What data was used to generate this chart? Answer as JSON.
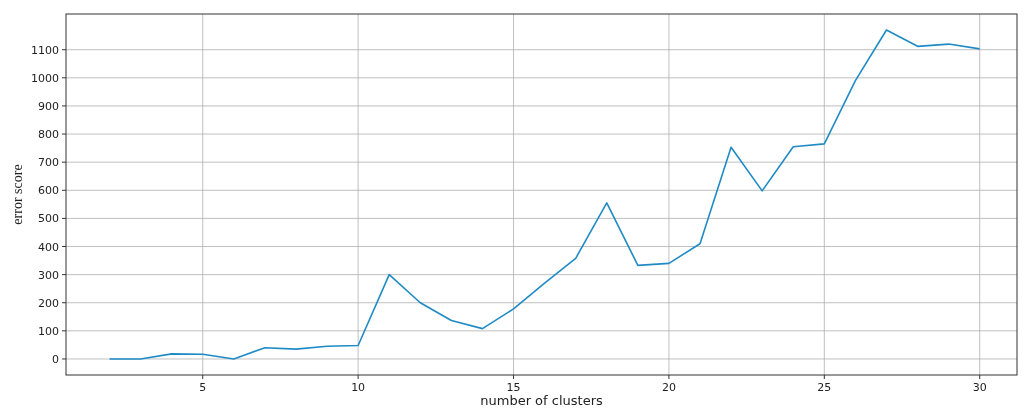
{
  "chart_data": {
    "type": "line",
    "xlabel": "number of clusters",
    "ylabel": "error score",
    "x": [
      2,
      3,
      4,
      5,
      6,
      7,
      8,
      9,
      10,
      11,
      12,
      13,
      14,
      15,
      16,
      17,
      18,
      19,
      20,
      21,
      22,
      23,
      24,
      25,
      26,
      27,
      28,
      29,
      30
    ],
    "series": [
      {
        "color": "#1f8bc6",
        "values": [
          0,
          0,
          18,
          17,
          0,
          40,
          35,
          45,
          48,
          300,
          200,
          137,
          108,
          178,
          270,
          358,
          555,
          333,
          340,
          410,
          753,
          598,
          755,
          765,
          990,
          1170,
          1112,
          1120,
          1103
        ]
      }
    ],
    "xlim": [
      0.6,
      31.2
    ],
    "xticks": [
      5,
      10,
      15,
      20,
      25,
      30
    ],
    "ylim": [
      -57,
      1227
    ],
    "yticks": [
      0,
      100,
      200,
      300,
      400,
      500,
      600,
      700,
      800,
      900,
      1000,
      1100
    ],
    "grid": true
  }
}
